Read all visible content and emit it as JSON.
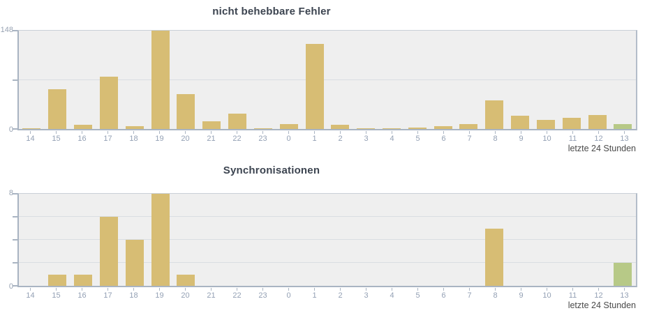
{
  "colors": {
    "bar": "#d7bd74",
    "current_hour_bar": "#b7c987",
    "plot_background": "#efefef",
    "gridline": "#d9dde2",
    "axis": "#a9b4c2",
    "axis_label": "#98a3b3",
    "title": "#3c4450",
    "footer_text": "#4a4a4a"
  },
  "chart_data": [
    {
      "type": "bar",
      "title": "nicht behebbare Fehler",
      "xlabel": "letzte 24 Stunden",
      "ylabel": "",
      "legend": "none",
      "grid": "on",
      "categories": [
        "14",
        "15",
        "16",
        "17",
        "18",
        "19",
        "20",
        "21",
        "22",
        "23",
        "0",
        "1",
        "2",
        "3",
        "4",
        "5",
        "6",
        "7",
        "8",
        "9",
        "10",
        "11",
        "12",
        "13"
      ],
      "values": [
        1,
        60,
        6,
        79,
        4,
        148,
        53,
        12,
        23,
        1,
        7,
        128,
        6,
        1,
        1,
        2,
        4,
        7,
        43,
        20,
        14,
        17,
        21,
        7
      ],
      "ylim": [
        0,
        148
      ],
      "gridlines": [
        74
      ],
      "y_axis": {
        "max_label": "148",
        "min_label": "0"
      },
      "bar_color": "#d7bd74",
      "last_bar_index": 23,
      "last_bar_color": "#b7c987"
    },
    {
      "type": "bar",
      "title": "Synchronisationen",
      "xlabel": "letzte 24 Stunden",
      "ylabel": "",
      "legend": "none",
      "grid": "on",
      "categories": [
        "14",
        "15",
        "16",
        "17",
        "18",
        "19",
        "20",
        "21",
        "22",
        "23",
        "0",
        "1",
        "2",
        "3",
        "4",
        "5",
        "6",
        "7",
        "8",
        "9",
        "10",
        "11",
        "12",
        "13"
      ],
      "values": [
        0,
        1,
        1,
        6,
        4,
        8,
        1,
        0,
        0,
        0,
        0,
        0,
        0,
        0,
        0,
        0,
        0,
        0,
        5,
        0,
        0,
        0,
        0,
        2
      ],
      "ylim": [
        0,
        8
      ],
      "gridlines": [
        2,
        4,
        6
      ],
      "y_axis": {
        "max_label": "8",
        "min_label": "0"
      },
      "bar_color": "#d7bd74",
      "last_bar_index": 23,
      "last_bar_color": "#b7c987"
    }
  ]
}
